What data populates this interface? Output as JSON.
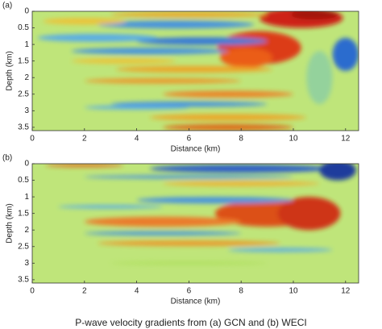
{
  "chart_data": [
    {
      "type": "heatmap",
      "label": "(a)",
      "xlabel": "Distance (km)",
      "ylabel": "Depth (km)",
      "xlim": [
        0,
        12.5
      ],
      "ylim": [
        0,
        3.6
      ],
      "y_inverted": true,
      "xticks": [
        0,
        2,
        4,
        6,
        8,
        10,
        12
      ],
      "yticks": [
        0,
        0.5,
        1,
        1.5,
        2,
        2.5,
        3,
        3.5
      ],
      "colormap": "jet"
    },
    {
      "type": "heatmap",
      "label": "(b)",
      "xlabel": "Distance (km)",
      "ylabel": "Depth (km)",
      "xlim": [
        0,
        12.5
      ],
      "ylim": [
        0,
        3.6
      ],
      "y_inverted": true,
      "xticks": [
        0,
        2,
        4,
        6,
        8,
        10,
        12
      ],
      "yticks": [
        0,
        0.5,
        1,
        1.5,
        2,
        2.5,
        3,
        3.5
      ],
      "colormap": "jet"
    }
  ],
  "caption": "P-wave velocity gradients from (a) GCN and (b) WECI"
}
